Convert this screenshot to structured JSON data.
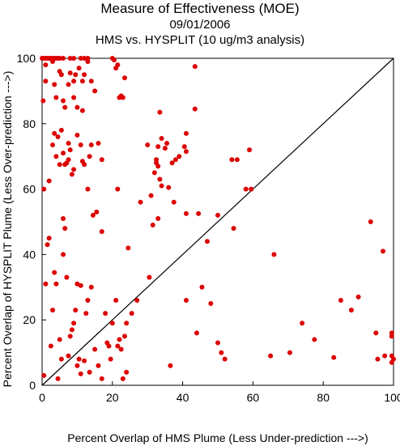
{
  "chart_data": {
    "type": "scatter",
    "title": "Measure of Effectiveness (MOE)",
    "subtitle": "09/01/2006",
    "subtitle2": "HMS vs. HYSPLIT  (10 ug/m3 analysis)",
    "xlabel": "Percent Overlap of HMS Plume (Less Under-prediction --->)",
    "ylabel": "Percent Overlap of HYSPLIT Plume (Less Over-prediction --->)",
    "xlim": [
      0,
      100
    ],
    "ylim": [
      0,
      100
    ],
    "xticks": [
      0,
      20,
      40,
      60,
      80,
      100
    ],
    "yticks": [
      0,
      20,
      40,
      60,
      80,
      100
    ],
    "point_color": "#dd0000",
    "diagonal_line": true,
    "grid": false,
    "points": [
      [
        0,
        100
      ],
      [
        0.5,
        100
      ],
      [
        1,
        100
      ],
      [
        1.5,
        100
      ],
      [
        2,
        100
      ],
      [
        2.5,
        100
      ],
      [
        3,
        100
      ],
      [
        3.5,
        100
      ],
      [
        4,
        100
      ],
      [
        4.5,
        100
      ],
      [
        5,
        100
      ],
      [
        6,
        100
      ],
      [
        8,
        100
      ],
      [
        9,
        100
      ],
      [
        11,
        100
      ],
      [
        12,
        100
      ],
      [
        13,
        100
      ],
      [
        20,
        100
      ],
      [
        20.5,
        99.5
      ],
      [
        0.3,
        87
      ],
      [
        1,
        93
      ],
      [
        1,
        98
      ],
      [
        3,
        99
      ],
      [
        3.5,
        92
      ],
      [
        4,
        88
      ],
      [
        5,
        96
      ],
      [
        5.5,
        95
      ],
      [
        6,
        87
      ],
      [
        6.5,
        85
      ],
      [
        7.5,
        92
      ],
      [
        8,
        95.5
      ],
      [
        9,
        93
      ],
      [
        9,
        88
      ],
      [
        9.5,
        95
      ],
      [
        10,
        85
      ],
      [
        10.5,
        97
      ],
      [
        11.5,
        84
      ],
      [
        11.5,
        93
      ],
      [
        12,
        95
      ],
      [
        13,
        99
      ],
      [
        14,
        93
      ],
      [
        15,
        90
      ],
      [
        21,
        97
      ],
      [
        21.5,
        98
      ],
      [
        22,
        88
      ],
      [
        22.5,
        88.5
      ],
      [
        23,
        88
      ],
      [
        23.5,
        94
      ],
      [
        43.5,
        97.5
      ],
      [
        0.5,
        60
      ],
      [
        2,
        62.5
      ],
      [
        3,
        73.5
      ],
      [
        3.5,
        77
      ],
      [
        4,
        70
      ],
      [
        4.5,
        76
      ],
      [
        5,
        67.5
      ],
      [
        5.5,
        78
      ],
      [
        6,
        71
      ],
      [
        6.5,
        67.5
      ],
      [
        7,
        68
      ],
      [
        7.5,
        74
      ],
      [
        7.5,
        69
      ],
      [
        8,
        72
      ],
      [
        8.5,
        64.5
      ],
      [
        9,
        66
      ],
      [
        10,
        76.5
      ],
      [
        11,
        73.5
      ],
      [
        11.5,
        68.5
      ],
      [
        12,
        67.5
      ],
      [
        13,
        60
      ],
      [
        13.5,
        70
      ],
      [
        14,
        73.5
      ],
      [
        16,
        74
      ],
      [
        17,
        69
      ],
      [
        21.5,
        60
      ],
      [
        28,
        56
      ],
      [
        30,
        73.5
      ],
      [
        31,
        58
      ],
      [
        31.5,
        49
      ],
      [
        32,
        65
      ],
      [
        32.5,
        68
      ],
      [
        32.5,
        69
      ],
      [
        33,
        73
      ],
      [
        33,
        67
      ],
      [
        33,
        51
      ],
      [
        33.5,
        83.5
      ],
      [
        33.5,
        63
      ],
      [
        34,
        61
      ],
      [
        34,
        75.5
      ],
      [
        35,
        72.5
      ],
      [
        35.5,
        74
      ],
      [
        36,
        60.5
      ],
      [
        37,
        68
      ],
      [
        37.5,
        56
      ],
      [
        38,
        69
      ],
      [
        39,
        70
      ],
      [
        40.5,
        73
      ],
      [
        41,
        77
      ],
      [
        41,
        52.5
      ],
      [
        41,
        71.5
      ],
      [
        43.5,
        84.5
      ],
      [
        44.5,
        52.5
      ],
      [
        50,
        52
      ],
      [
        54,
        69
      ],
      [
        54.5,
        48
      ],
      [
        55.5,
        69
      ],
      [
        58,
        60
      ],
      [
        59,
        72
      ],
      [
        59.5,
        60
      ],
      [
        0.5,
        3
      ],
      [
        1,
        31
      ],
      [
        1.5,
        43
      ],
      [
        2,
        45
      ],
      [
        2.5,
        12
      ],
      [
        3,
        23
      ],
      [
        3.5,
        34.5
      ],
      [
        4,
        31
      ],
      [
        4.5,
        2
      ],
      [
        5,
        14
      ],
      [
        5.5,
        8
      ],
      [
        6,
        40
      ],
      [
        6,
        51
      ],
      [
        6.5,
        48
      ],
      [
        7,
        33
      ],
      [
        7.5,
        9
      ],
      [
        8,
        15
      ],
      [
        8.5,
        17
      ],
      [
        9,
        19
      ],
      [
        9.5,
        23
      ],
      [
        10,
        31
      ],
      [
        10,
        6
      ],
      [
        10.5,
        8
      ],
      [
        11,
        30.5
      ],
      [
        11,
        3.5
      ],
      [
        12,
        7.5
      ],
      [
        12.5,
        22
      ],
      [
        13,
        26
      ],
      [
        13.5,
        4
      ],
      [
        14,
        30
      ],
      [
        14.5,
        52
      ],
      [
        15,
        11
      ],
      [
        15.5,
        53
      ],
      [
        16,
        6
      ],
      [
        17,
        2
      ],
      [
        17,
        47
      ],
      [
        18,
        22
      ],
      [
        18.5,
        13
      ],
      [
        19,
        12
      ],
      [
        19.5,
        8
      ],
      [
        20,
        19
      ],
      [
        21,
        26
      ],
      [
        21.5,
        12
      ],
      [
        22,
        14
      ],
      [
        22.5,
        11
      ],
      [
        23,
        2
      ],
      [
        23.5,
        15
      ],
      [
        24,
        4
      ],
      [
        24,
        19
      ],
      [
        24.5,
        42
      ],
      [
        25.5,
        22
      ],
      [
        27,
        26
      ],
      [
        30.5,
        33
      ],
      [
        36.5,
        6
      ],
      [
        41,
        26
      ],
      [
        44,
        16
      ],
      [
        45.5,
        30
      ],
      [
        47,
        44
      ],
      [
        48,
        25
      ],
      [
        50,
        13
      ],
      [
        51,
        10
      ],
      [
        52,
        8
      ],
      [
        65,
        9
      ],
      [
        66,
        40
      ],
      [
        70.5,
        10
      ],
      [
        74,
        19
      ],
      [
        77.5,
        14
      ],
      [
        83,
        8.5
      ],
      [
        85,
        26
      ],
      [
        88,
        23
      ],
      [
        90,
        27
      ],
      [
        93.5,
        50
      ],
      [
        95,
        16
      ],
      [
        95.5,
        8
      ],
      [
        97,
        41
      ],
      [
        97.5,
        9
      ],
      [
        99.5,
        16
      ],
      [
        99.5,
        9
      ],
      [
        99.5,
        7
      ],
      [
        99.5,
        15
      ],
      [
        100,
        8
      ]
    ]
  }
}
